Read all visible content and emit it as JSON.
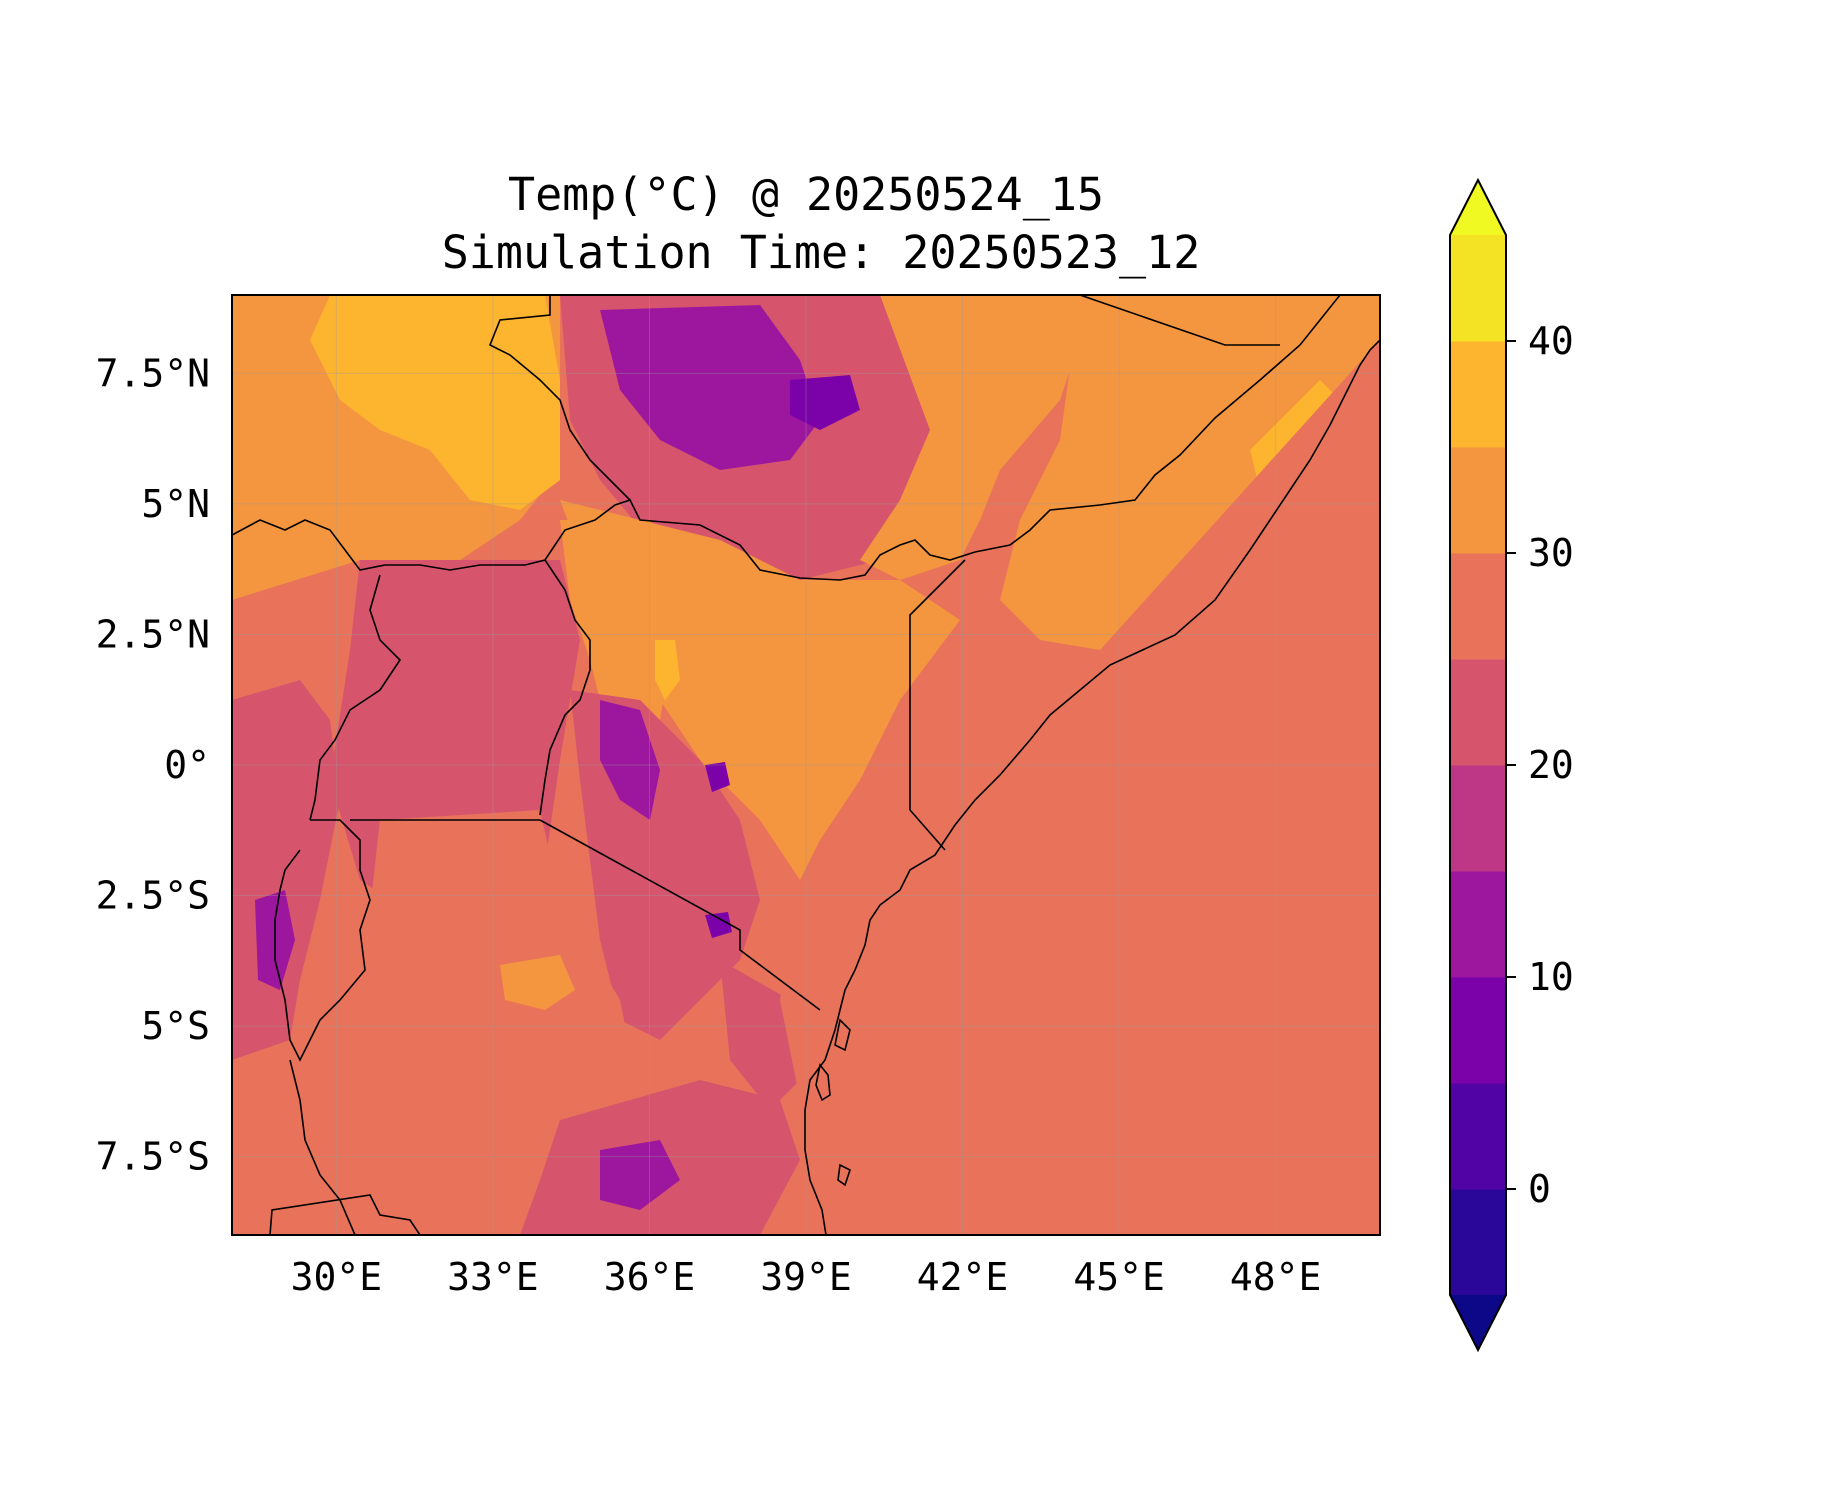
{
  "title": {
    "line1": "Temp(°C) @ 20250524_15",
    "line2": "Simulation Time: 20250523_12"
  },
  "map": {
    "lon_range": [
      28,
      50
    ],
    "lat_range": [
      -9,
      9
    ],
    "x_ticks": [
      {
        "value": 30,
        "label": "30°E"
      },
      {
        "value": 33,
        "label": "33°E"
      },
      {
        "value": 36,
        "label": "36°E"
      },
      {
        "value": 39,
        "label": "39°E"
      },
      {
        "value": 42,
        "label": "42°E"
      },
      {
        "value": 45,
        "label": "45°E"
      },
      {
        "value": 48,
        "label": "48°E"
      }
    ],
    "y_ticks": [
      {
        "value": 7.5,
        "label": "7.5°N"
      },
      {
        "value": 5,
        "label": "5°N"
      },
      {
        "value": 2.5,
        "label": "2.5°N"
      },
      {
        "value": 0,
        "label": "0°"
      },
      {
        "value": -2.5,
        "label": "2.5°S"
      },
      {
        "value": -5,
        "label": "5°S"
      },
      {
        "value": -7.5,
        "label": "7.5°S"
      }
    ],
    "gridlines": true,
    "ocean_color": "#e8735a"
  },
  "colorbar": {
    "range": [
      -5,
      45
    ],
    "levels": [
      -5,
      0,
      5,
      10,
      15,
      20,
      25,
      30,
      35,
      40,
      45
    ],
    "colors": [
      "#2a0798",
      "#5103a6",
      "#7b02a8",
      "#9c179e",
      "#bd3786",
      "#d6556d",
      "#e8735a",
      "#f4963f",
      "#fdb42f",
      "#f3e324"
    ],
    "under_color": "#0d0887",
    "over_color": "#f0f921",
    "extend": "both",
    "ticks": [
      {
        "value": 0,
        "label": "0"
      },
      {
        "value": 10,
        "label": "10"
      },
      {
        "value": 20,
        "label": "20"
      },
      {
        "value": 30,
        "label": "30"
      },
      {
        "value": 40,
        "label": "40"
      }
    ]
  }
}
